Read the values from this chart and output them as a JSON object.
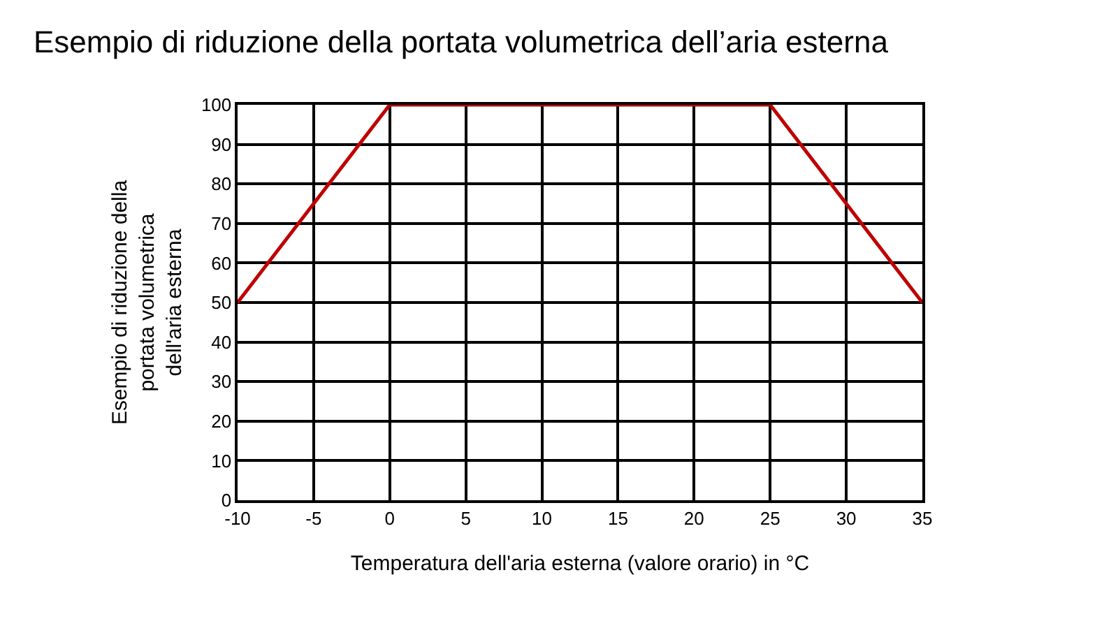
{
  "chart_data": {
    "type": "line",
    "title": "Esempio di riduzione della portata volumetrica dell’aria esterna",
    "xlabel": "Temperatura dell'aria esterna (valore orario) in °C",
    "ylabel": "Esempio di riduzione della\nportata volumetrica\ndell'aria esterna",
    "x": [
      -10,
      0,
      25,
      35
    ],
    "series": [
      {
        "color": "#c00000",
        "values": [
          50,
          100,
          100,
          50
        ]
      }
    ],
    "xlim": [
      -10,
      35
    ],
    "xticks": [
      -10,
      -5,
      0,
      5,
      10,
      15,
      20,
      25,
      30,
      35
    ],
    "ylim": [
      0,
      100
    ],
    "yticks": [
      0,
      10,
      20,
      30,
      40,
      50,
      60,
      70,
      80,
      90,
      100
    ],
    "grid": true,
    "marker": "none",
    "line_style": "solid"
  }
}
